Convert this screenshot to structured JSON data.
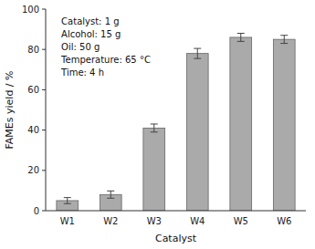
{
  "chart_data": {
    "type": "bar",
    "categories": [
      "W1",
      "W2",
      "W3",
      "W4",
      "W5",
      "W6"
    ],
    "values": [
      5.0,
      8.0,
      41.0,
      78.0,
      86.0,
      85.0
    ],
    "errors": [
      1.5,
      1.8,
      2.0,
      2.5,
      2.0,
      2.0
    ],
    "color": "#aaaaaa",
    "xlabel": "Catalyst",
    "ylabel": "FAMEs yield / %",
    "ylim": [
      0,
      100
    ],
    "yticks": [
      0,
      20,
      40,
      60,
      80,
      100
    ],
    "annotation": "Catalyst: 1 g\nAlcohol: 15 g\nOil: 50 g\nTemperature: 65 °C\nTime: 4 h",
    "grid": false
  }
}
